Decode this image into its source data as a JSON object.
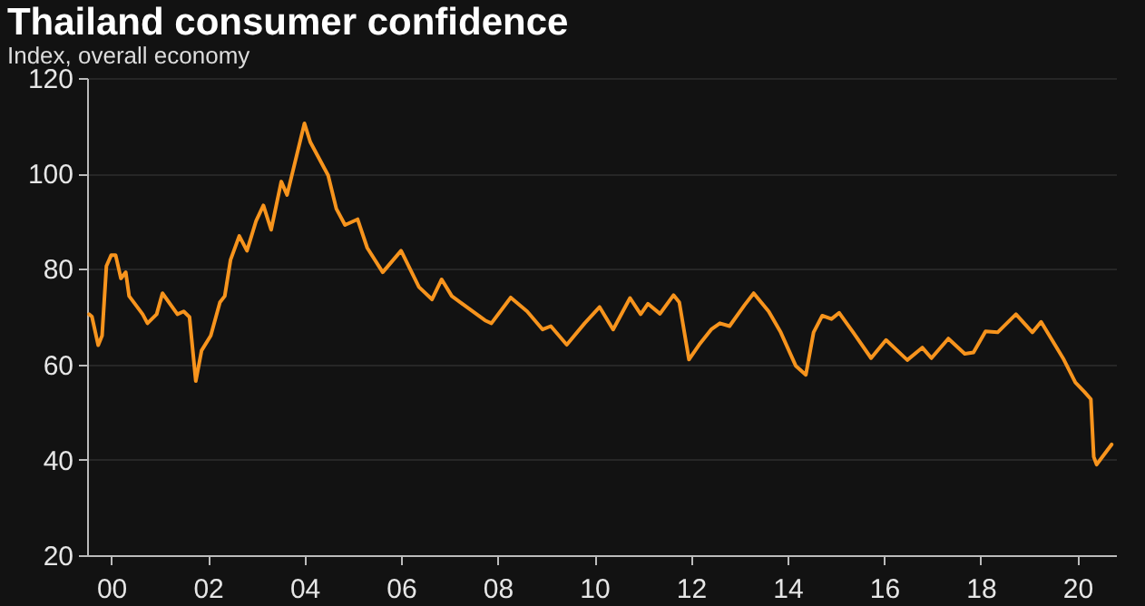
{
  "chart_data": {
    "type": "line",
    "title": "Thailand consumer confidence",
    "subtitle": "Index, overall economy",
    "x": [
      1999.54,
      1999.6,
      1999.73,
      1999.81,
      1999.9,
      2000.0,
      2000.09,
      2000.2,
      2000.3,
      2000.37,
      2000.65,
      2000.75,
      2000.94,
      2001.06,
      2001.37,
      2001.5,
      2001.62,
      2001.75,
      2001.87,
      2002.06,
      2002.25,
      2002.35,
      2002.47,
      2002.65,
      2002.81,
      2003.0,
      2003.15,
      2003.31,
      2003.52,
      2003.64,
      2004.0,
      2004.12,
      2004.49,
      2004.66,
      2004.84,
      2005.1,
      2005.3,
      2005.62,
      2006.0,
      2006.37,
      2006.64,
      2006.84,
      2007.05,
      2007.74,
      2007.87,
      2008.27,
      2008.61,
      2008.93,
      2009.1,
      2009.43,
      2009.8,
      2010.11,
      2010.39,
      2010.74,
      2010.96,
      2011.11,
      2011.36,
      2011.64,
      2011.76,
      2011.96,
      2012.17,
      2012.42,
      2012.6,
      2012.8,
      2013.11,
      2013.3,
      2013.61,
      2013.86,
      2014.17,
      2014.38,
      2014.54,
      2014.72,
      2014.91,
      2015.07,
      2015.36,
      2015.73,
      2016.04,
      2016.48,
      2016.79,
      2016.98,
      2017.33,
      2017.67,
      2017.85,
      2018.1,
      2018.35,
      2018.73,
      2019.07,
      2019.25,
      2019.72,
      2019.96,
      2020.15,
      2020.28,
      2020.34,
      2020.4,
      2020.71
    ],
    "series": [
      {
        "color": "#f7941d",
        "values": [
          70.5,
          70,
          64,
          66,
          80.6,
          82.9,
          82.9,
          78,
          79.3,
          74.3,
          70.5,
          68.6,
          70.5,
          74.9,
          70.5,
          71.1,
          69.9,
          56.5,
          62.9,
          66,
          73,
          74.3,
          81.9,
          86.9,
          83.8,
          90.1,
          93.3,
          88.2,
          98.3,
          95.5,
          110.5,
          106.6,
          99.6,
          92.6,
          89.2,
          90.4,
          84.4,
          79.3,
          83.8,
          76.2,
          73.6,
          77.8,
          74.3,
          69.2,
          68.6,
          74,
          71.1,
          67.3,
          68,
          64.1,
          68.6,
          72,
          67.3,
          73.9,
          70.5,
          72.7,
          70.6,
          74.5,
          73,
          61,
          64.1,
          67.3,
          68.6,
          68,
          72.4,
          74.9,
          71.1,
          66.7,
          59.7,
          57.8,
          66.7,
          70.2,
          69.5,
          70.8,
          66.7,
          61.3,
          65.1,
          60.9,
          63.5,
          61.3,
          65.4,
          62.2,
          62.5,
          66.9,
          66.7,
          70.5,
          66.7,
          68.9,
          61,
          56.2,
          54.2,
          52.7,
          40.6,
          39,
          43.2
        ]
      }
    ],
    "xlim": [
      1999.5,
      2020.8
    ],
    "xticks": [
      {
        "value": 2000,
        "label": "00"
      },
      {
        "value": 2002,
        "label": "02"
      },
      {
        "value": 2004,
        "label": "04"
      },
      {
        "value": 2006,
        "label": "06"
      },
      {
        "value": 2008,
        "label": "08"
      },
      {
        "value": 2010,
        "label": "10"
      },
      {
        "value": 2012,
        "label": "12"
      },
      {
        "value": 2014,
        "label": "14"
      },
      {
        "value": 2016,
        "label": "16"
      },
      {
        "value": 2018,
        "label": "18"
      },
      {
        "value": 2020,
        "label": "20"
      }
    ],
    "ylim": [
      20,
      120
    ],
    "yticks": [
      20,
      40,
      60,
      80,
      100,
      120
    ],
    "grid": "y",
    "marker": "none",
    "line_style": "solid"
  }
}
